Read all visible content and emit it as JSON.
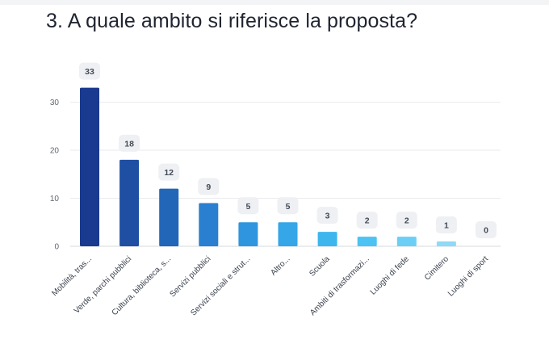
{
  "question": {
    "title": "3. A quale ambito si riferisce la proposta?"
  },
  "chart_data": {
    "type": "bar",
    "title": "",
    "xlabel": "",
    "ylabel": "",
    "ylim": [
      0,
      33
    ],
    "yticks": [
      0,
      10,
      20,
      30
    ],
    "grid": true,
    "legend": "none",
    "categories": [
      "Mobilità, tras...",
      "Verde, parchi pubblici",
      "Cultura, biblioteca, s...",
      "Servizi pubblici",
      "Servizi sociali e strut...",
      "Altro...",
      "Scuola",
      "Ambiti di trasformazi...",
      "Luoghi di fede",
      "Cimitero",
      "Luoghi di sport"
    ],
    "values": [
      33,
      18,
      12,
      9,
      5,
      5,
      3,
      2,
      2,
      1,
      0
    ],
    "value_labels": [
      "33",
      "18",
      "12",
      "9",
      "5",
      "5",
      "3",
      "2",
      "2",
      "1",
      "0"
    ],
    "colors": [
      "#1a3a8f",
      "#1e4fa3",
      "#2266b8",
      "#2a7fd0",
      "#2f95df",
      "#35a6e8",
      "#3db6ee",
      "#4cc3f2",
      "#6bcff5",
      "#8edaf7",
      "#b2e6fa"
    ]
  }
}
